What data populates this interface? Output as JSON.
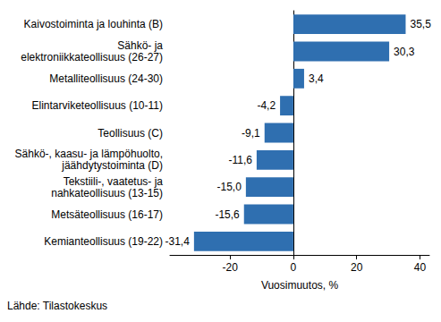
{
  "chart_data": {
    "type": "bar",
    "orientation": "horizontal",
    "categories": [
      "Kaivostoiminta ja louhinta (B)",
      "Sähkö- ja\nelektroniikkateollisuus (26-27)",
      "Metalliteollisuus (24-30)",
      "Elintarviketeollisuus (10-11)",
      "Teollisuus (C)",
      "Sähkö-, kaasu- ja lämpöhuolto,\njäähdytystoiminta (D)",
      "Tekstiili-, vaatetus- ja\nnahkateollisuus (13-15)",
      "Metsäteollisuus (16-17)",
      "Kemianteollisuus (19-22)"
    ],
    "values": [
      35.5,
      30.3,
      3.4,
      -4.2,
      -9.1,
      -11.6,
      -15.0,
      -15.6,
      -31.4
    ],
    "value_labels": [
      "35,5",
      "30,3",
      "3,4",
      "-4,2",
      "-9,1",
      "-11,6",
      "-15,0",
      "-15,6",
      "-31,4"
    ],
    "color": "#2f6fb0",
    "xlabel": "Vuosimuutos, %",
    "xlim": [
      -39,
      43
    ],
    "xticks": [
      -20,
      0,
      20,
      40
    ],
    "grid": false,
    "data_labels": true,
    "source": "Lähde: Tilastokeskus"
  }
}
